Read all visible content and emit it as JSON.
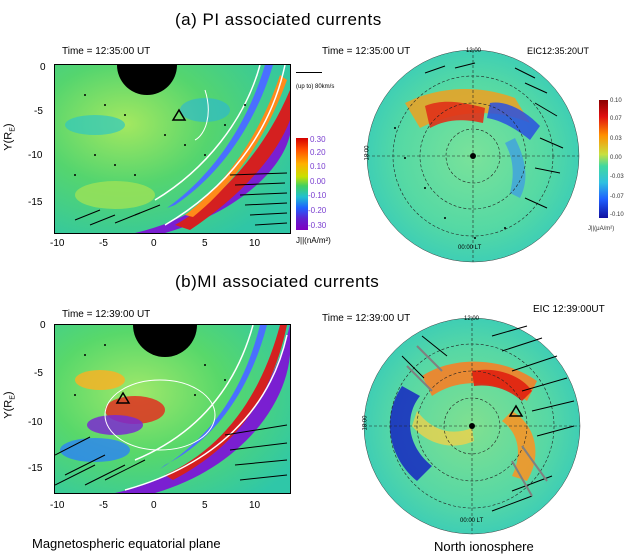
{
  "headings": {
    "top": "(a) PI associated currents",
    "bottom": "(b)MI associated currents"
  },
  "panels": {
    "a_mag": {
      "time": "Time = 12:35:00 UT"
    },
    "a_ion": {
      "time": "Time = 12:35:00 UT",
      "eic": "EIC12:35:20UT",
      "lt_top": "12:00",
      "lt_left": "18:00",
      "lt_bottom": "00:00 LT"
    },
    "b_mag": {
      "time": "Time = 12:39:00 UT"
    },
    "b_ion": {
      "time": "Time = 12:39:00 UT",
      "eic": "EIC 12:39:00UT",
      "lt_top": "12:00",
      "lt_left": "18:00",
      "lt_bottom": "00:00 LT"
    }
  },
  "axes": {
    "y_label": "Y(R",
    "y_label_sub": "E",
    "y_label_end": ")",
    "y_ticks": [
      "0",
      "-5",
      "-10",
      "-15"
    ],
    "x_ticks": [
      "-10",
      "-5",
      "0",
      "5",
      "10"
    ]
  },
  "scale_arrow_label": "(up to) 80km/s",
  "colorbar_mag": {
    "ticks": [
      "0.30",
      "0.20",
      "0.10",
      "0.00",
      "-0.10",
      "-0.20",
      "-0.30"
    ],
    "unit": "J||(nA/m²)",
    "colors": [
      "#d40000",
      "#ff4a00",
      "#ffb000",
      "#c8e000",
      "#40d060",
      "#20c0d0",
      "#2060ff",
      "#6020d0",
      "#8000c0"
    ]
  },
  "colorbar_ion": {
    "ticks": [
      "0.10",
      "0.07",
      "0.03",
      "0.00",
      "-0.03",
      "-0.07",
      "-0.10"
    ],
    "unit": "J||(μA/m²)"
  },
  "bottom_labels": {
    "left": "Magnetospheric equatorial plane",
    "right": "North ionosphere"
  }
}
